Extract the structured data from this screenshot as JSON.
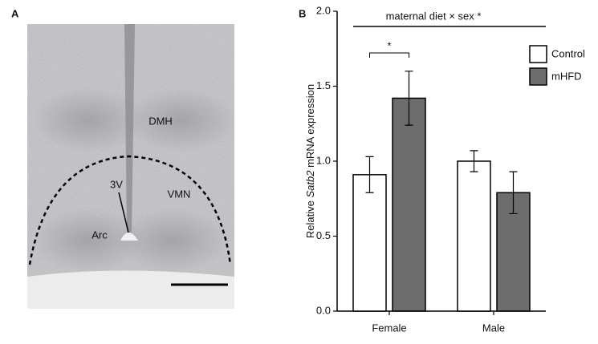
{
  "panel_a": {
    "label": "A",
    "regions": [
      "DMH",
      "3V",
      "VMN",
      "Arc"
    ]
  },
  "chart_data": {
    "type": "bar",
    "panel_label": "B",
    "ylabel": {
      "before": "Relative",
      "italic": "Satb2",
      "after": "mRNA expression"
    },
    "categories": [
      "Female",
      "Male"
    ],
    "series": [
      {
        "name": "Control",
        "color": "#ffffff",
        "values": [
          0.91,
          1.0
        ],
        "errors": [
          0.12,
          0.07
        ]
      },
      {
        "name": "mHFD",
        "color": "#6d6d6d",
        "values": [
          1.42,
          0.79
        ],
        "errors": [
          0.18,
          0.14
        ]
      }
    ],
    "ylim": [
      0,
      2
    ],
    "yticks": [
      {
        "value": 0,
        "label": "0.0"
      },
      {
        "value": 0.5,
        "label": "0.5"
      },
      {
        "value": 1,
        "label": "1.0"
      },
      {
        "value": 1.5,
        "label": "1.5"
      },
      {
        "value": 2,
        "label": "2.0"
      }
    ],
    "annotations": [
      "maternal diet × sex *",
      "*"
    ],
    "legend": "top-right"
  }
}
